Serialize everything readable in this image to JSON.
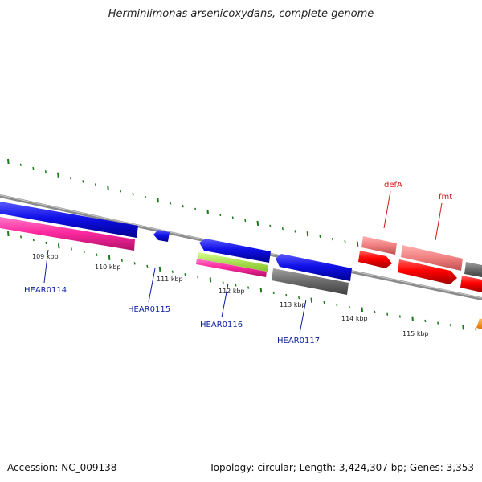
{
  "title": "Herminiimonas arsenicoxydans, complete genome",
  "footer": {
    "accession": "Accession: NC_009138",
    "summary": "Topology: circular; Length: 3,424,307 bp; Genes: 3,353"
  },
  "ticks": [
    {
      "label": "109 kbp"
    },
    {
      "label": "110 kbp"
    },
    {
      "label": "111 kbp"
    },
    {
      "label": "112 kbp"
    },
    {
      "label": "113 kbp"
    },
    {
      "label": "114 kbp"
    },
    {
      "label": "115 kbp"
    }
  ],
  "gene_labels": [
    {
      "text": "HEAR0114",
      "color": "#0a1fa0"
    },
    {
      "text": "HEAR0115",
      "color": "#0a1fa0"
    },
    {
      "text": "HEAR0116",
      "color": "#0a1fa0"
    },
    {
      "text": "HEAR0117",
      "color": "#0a1fa0"
    },
    {
      "text": "defA",
      "color": "#d01818"
    },
    {
      "text": "fmt",
      "color": "#d01818"
    }
  ],
  "colors": {
    "cds_blue": "#1010e8",
    "gene_pink": "#ff2aa0",
    "rna_green": "#a8e840",
    "grey": "#707070",
    "red": "#ff0000",
    "salmon": "#f08080",
    "orange": "#ff9000",
    "tick_green": "#1a7a1a",
    "backbone": "#8a8a8a"
  }
}
